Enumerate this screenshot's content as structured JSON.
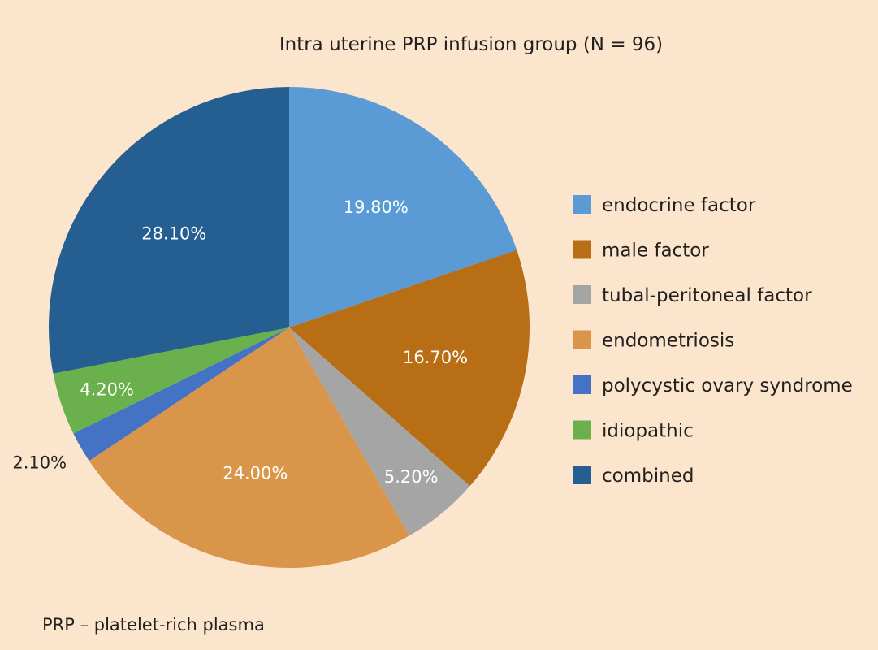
{
  "chart_data": {
    "type": "pie",
    "title": "Intra uterine PRP infusion group (N = 96)",
    "slices": [
      {
        "label": "endocrine factor",
        "value": 19.8,
        "display": "19.80%",
        "color": "#5a9bd5"
      },
      {
        "label": "male factor",
        "value": 16.7,
        "display": "16.70%",
        "color": "#b76e14"
      },
      {
        "label": "tubal-peritoneal factor",
        "value": 5.2,
        "display": "5.20%",
        "color": "#a5a5a5"
      },
      {
        "label": "endometriosis",
        "value": 24.0,
        "display": "24.00%",
        "color": "#d9964b"
      },
      {
        "label": "polycystic ovary syndrome",
        "value": 2.1,
        "display": "2.10%",
        "color": "#4472c4"
      },
      {
        "label": "idiopathic",
        "value": 4.2,
        "display": "4.20%",
        "color": "#6ab04c"
      },
      {
        "label": "combined",
        "value": 28.1,
        "display": "28.10%",
        "color": "#255e91"
      }
    ],
    "legend_position": "right"
  },
  "footnote": "PRP – platelet-rich plasma"
}
